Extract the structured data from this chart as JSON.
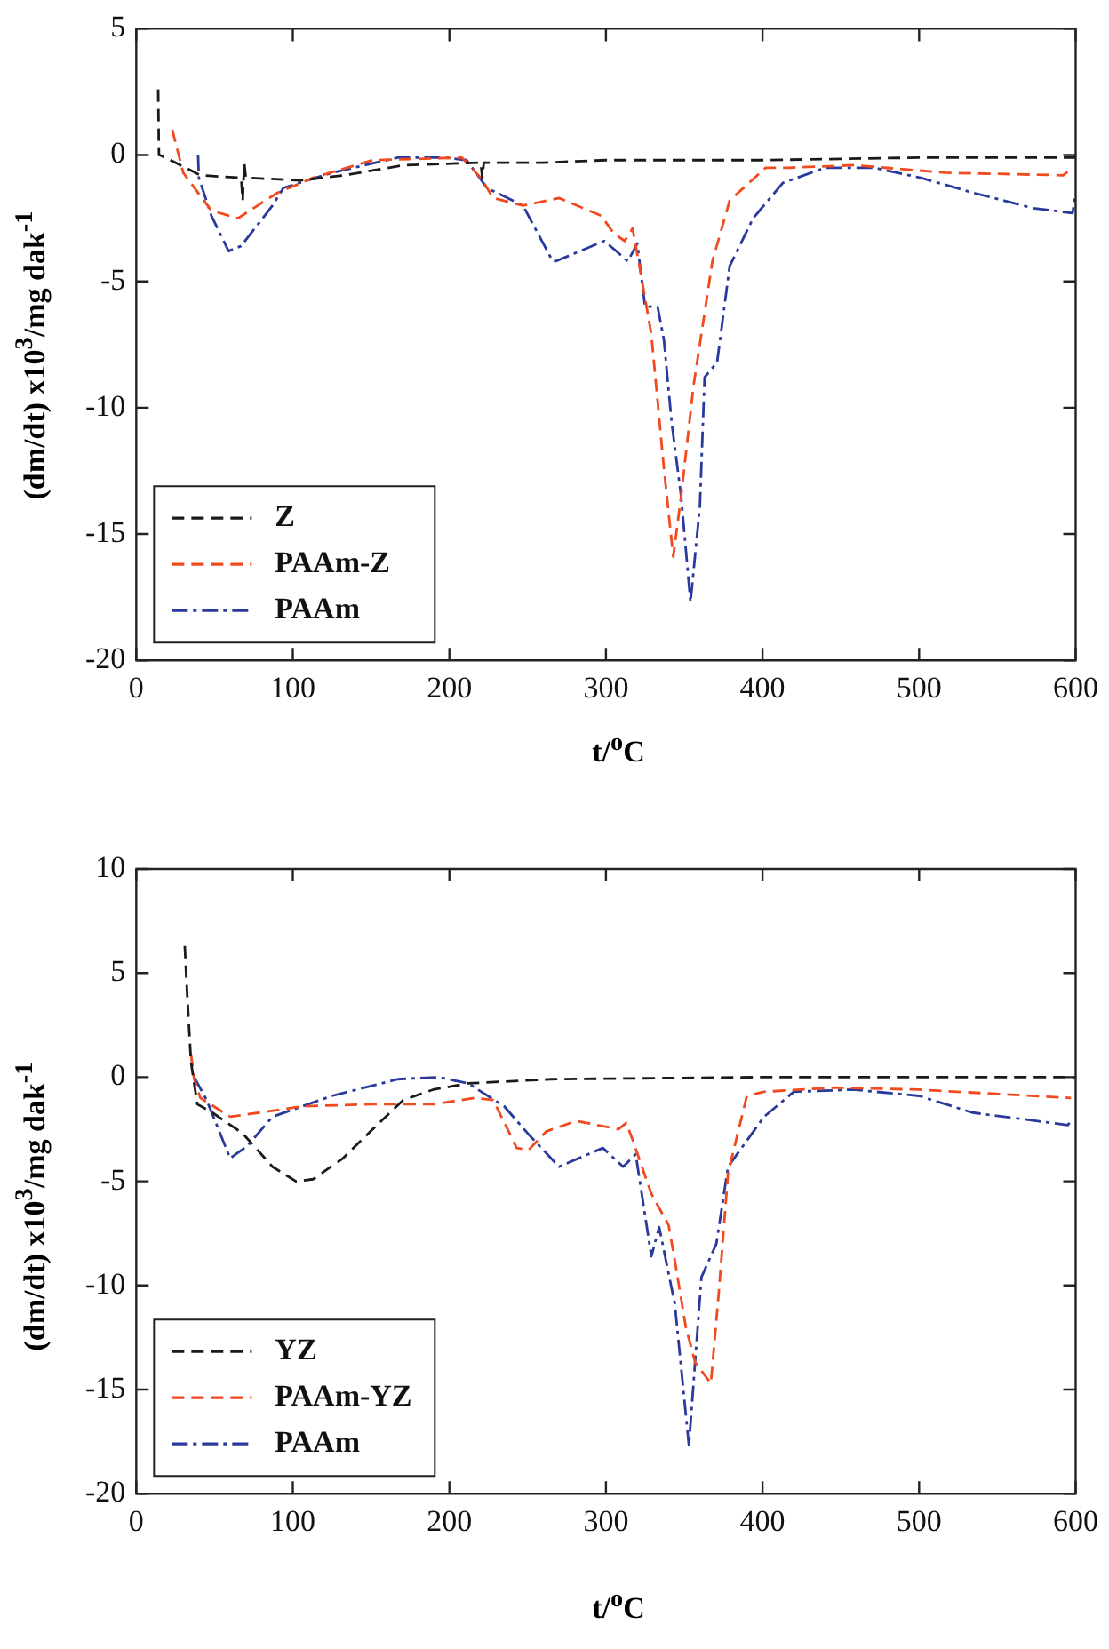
{
  "chart_data": [
    {
      "type": "line",
      "xlabel": "t/$^{o}$C",
      "ylabel": "(dm/dt) x10$^{3}$/mg dak$^{-1}$",
      "xlim": [
        0,
        600
      ],
      "xticks": [
        0,
        100,
        200,
        300,
        400,
        500,
        600
      ],
      "ylim": [
        -20,
        5
      ],
      "yticks": [
        -20,
        -15,
        -10,
        -5,
        0,
        5
      ],
      "grid": false,
      "legend": "bottom left",
      "marker": "none",
      "series": [
        {
          "name": "Z",
          "color": "#1a1a1a",
          "line_style": "dashed",
          "x": [
            14,
            14.5,
            15,
            25,
            41,
            67,
            68,
            69,
            70,
            105,
            133,
            171,
            220,
            221,
            222,
            260,
            300,
            400,
            500,
            600
          ],
          "values": [
            2.6,
            0,
            0,
            -0.3,
            -0.8,
            -0.9,
            -1.8,
            -0.3,
            -0.9,
            -1.0,
            -0.8,
            -0.4,
            -0.3,
            -0.9,
            -0.3,
            -0.3,
            -0.2,
            -0.2,
            -0.1,
            -0.1
          ]
        },
        {
          "name": "PAAm-Z",
          "color": "#f04a1e",
          "line_style": "dashed",
          "x": [
            23,
            30,
            48,
            65,
            90,
            113,
            151,
            208,
            220,
            228,
            247,
            270,
            297,
            305,
            312,
            317,
            322,
            329,
            337,
            343,
            348,
            356,
            368,
            379,
            402,
            417,
            459,
            517,
            592,
            598
          ],
          "values": [
            1.0,
            -0.7,
            -2.2,
            -2.5,
            -1.5,
            -0.9,
            -0.2,
            -0.1,
            -0.9,
            -1.7,
            -2.0,
            -1.7,
            -2.4,
            -3.1,
            -3.4,
            -2.9,
            -4.6,
            -7.1,
            -12.4,
            -15.9,
            -13.5,
            -9.1,
            -4.2,
            -1.8,
            -0.5,
            -0.5,
            -0.4,
            -0.7,
            -0.8,
            -0.5
          ]
        },
        {
          "name": "PAAm",
          "color": "#2a3a9c",
          "line_style": "dashdot",
          "x": [
            39.5,
            40,
            48,
            59,
            67,
            87,
            94,
            125,
            167,
            197,
            211,
            224,
            247,
            266,
            268,
            299,
            314,
            320,
            325,
            333,
            337,
            342,
            348,
            354,
            360,
            363,
            371,
            379,
            394,
            413,
            440,
            471,
            501,
            535,
            573,
            598,
            600
          ],
          "values": [
            0,
            -0.9,
            -2.4,
            -3.8,
            -3.6,
            -2.0,
            -1.3,
            -0.7,
            -0.1,
            -0.1,
            -0.2,
            -1.3,
            -2.0,
            -4.2,
            -4.2,
            -3.4,
            -4.2,
            -3.5,
            -6.0,
            -6.0,
            -7.3,
            -10.6,
            -13.5,
            -17.7,
            -13.9,
            -8.8,
            -8.2,
            -4.4,
            -2.5,
            -1.1,
            -0.5,
            -0.5,
            -0.9,
            -1.5,
            -2.1,
            -2.3,
            -1.5
          ]
        }
      ]
    },
    {
      "type": "line",
      "xlabel": "t/$^{o}$C",
      "ylabel": "(dm/dt) x10$^{3}$/mg dak$^{-1}$",
      "xlim": [
        0,
        600
      ],
      "xticks": [
        0,
        100,
        200,
        300,
        400,
        500,
        600
      ],
      "ylim": [
        -20,
        10
      ],
      "yticks": [
        -20,
        -15,
        -10,
        -5,
        0,
        5,
        10
      ],
      "grid": false,
      "legend": "bottom left",
      "marker": "none",
      "series": [
        {
          "name": "YZ",
          "color": "#1a1a1a",
          "line_style": "dashed",
          "x": [
            31,
            32.6,
            35,
            39,
            48.6,
            68,
            87,
            102,
            113,
            132,
            151,
            170.5,
            189.6,
            212,
            265,
            400,
            500,
            600
          ],
          "values": [
            6.3,
            3.9,
            0.7,
            -1.3,
            -1.7,
            -2.7,
            -4.3,
            -5.0,
            -4.9,
            -3.9,
            -2.5,
            -1.1,
            -0.6,
            -0.3,
            -0.1,
            0,
            0,
            0
          ]
        },
        {
          "name": "PAAm-YZ",
          "color": "#f04a1e",
          "line_style": "dashed",
          "x": [
            35,
            37,
            41,
            60,
            79,
            106,
            151,
            190,
            216,
            228,
            243,
            250.5,
            262,
            281,
            308,
            313,
            317,
            329,
            340,
            344,
            351,
            357,
            367,
            372,
            378,
            390,
            401,
            447,
            500,
            597
          ],
          "values": [
            1.1,
            -0.1,
            -1.0,
            -1.9,
            -1.7,
            -1.4,
            -1.3,
            -1.3,
            -1.0,
            -1.1,
            -3.4,
            -3.5,
            -2.6,
            -2.1,
            -2.5,
            -2.2,
            -3.0,
            -5.6,
            -7.1,
            -8.8,
            -12.0,
            -13.7,
            -14.7,
            -10.4,
            -4.6,
            -0.9,
            -0.7,
            -0.5,
            -0.6,
            -1.0
          ]
        },
        {
          "name": "PAAm",
          "color": "#2a3a9c",
          "line_style": "dashdot",
          "x": [
            37,
            45,
            60,
            71,
            87,
            106,
            125,
            167,
            193,
            212,
            235,
            250,
            270,
            298,
            311,
            319,
            329,
            334,
            344,
            353,
            357,
            361,
            370.5,
            378,
            401,
            420,
            458,
            500,
            534,
            595,
            598
          ],
          "values": [
            0,
            -1.1,
            -3.9,
            -3.3,
            -1.9,
            -1.4,
            -0.9,
            -0.1,
            0,
            -0.3,
            -1.4,
            -2.7,
            -4.3,
            -3.4,
            -4.3,
            -3.7,
            -8.6,
            -7.2,
            -10.9,
            -17.7,
            -13.6,
            -9.6,
            -8.0,
            -4.3,
            -1.9,
            -0.7,
            -0.6,
            -0.9,
            -1.7,
            -2.3,
            -2.0
          ]
        }
      ]
    }
  ]
}
